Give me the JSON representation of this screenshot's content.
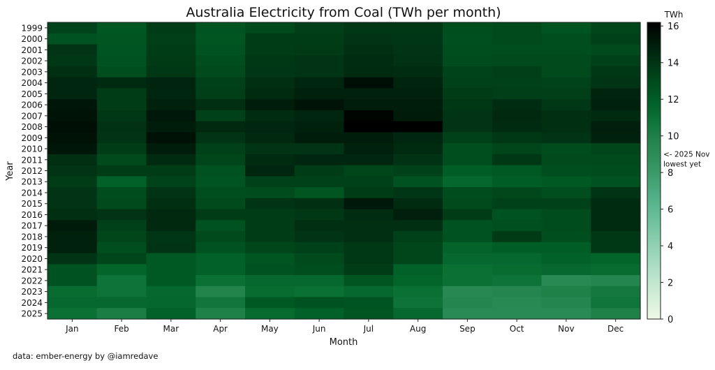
{
  "chart_data": {
    "type": "heatmap",
    "title": "Australia Electricity from Coal (TWh per month)",
    "xlabel": "Month",
    "ylabel": "Year",
    "colorbar_label": "TWh",
    "colorbar_ticks": [
      "0",
      "2",
      "4",
      "6",
      "8",
      "10",
      "12",
      "14",
      "16"
    ],
    "colorbar_range": [
      0,
      16.2
    ],
    "annotation": [
      "<- 2025 Nov",
      "lowest yet"
    ],
    "annotation_value": 9.2,
    "months": [
      "Jan",
      "Feb",
      "Mar",
      "Apr",
      "May",
      "Jun",
      "Jul",
      "Aug",
      "Sep",
      "Oct",
      "Nov",
      "Dec"
    ],
    "years": [
      "1999",
      "2000",
      "2001",
      "2002",
      "2003",
      "2004",
      "2005",
      "2006",
      "2007",
      "2008",
      "2009",
      "2010",
      "2011",
      "2012",
      "2013",
      "2014",
      "2015",
      "2016",
      "2017",
      "2018",
      "2019",
      "2020",
      "2021",
      "2022",
      "2023",
      "2024",
      "2025"
    ],
    "values": [
      [
        13.3,
        12.3,
        13.6,
        12.5,
        13.0,
        13.5,
        13.8,
        13.8,
        12.8,
        13.0,
        12.5,
        13.2
      ],
      [
        12.6,
        12.4,
        13.5,
        12.4,
        13.6,
        13.6,
        14.0,
        13.9,
        12.7,
        13.0,
        12.8,
        13.4
      ],
      [
        14.0,
        12.5,
        13.6,
        12.6,
        13.6,
        13.7,
        14.2,
        14.0,
        12.8,
        12.8,
        12.8,
        13.0
      ],
      [
        13.8,
        12.6,
        13.7,
        12.8,
        13.8,
        14.0,
        14.3,
        14.1,
        12.9,
        13.0,
        13.0,
        13.4
      ],
      [
        14.2,
        12.8,
        13.8,
        13.0,
        13.9,
        14.0,
        14.4,
        14.3,
        13.3,
        13.5,
        13.0,
        13.8
      ],
      [
        14.6,
        14.4,
        14.7,
        13.4,
        14.2,
        14.6,
        15.6,
        14.7,
        13.4,
        13.4,
        13.3,
        14.0
      ],
      [
        14.6,
        13.6,
        14.6,
        13.5,
        14.4,
        14.8,
        14.8,
        14.8,
        13.6,
        13.5,
        13.5,
        14.7
      ],
      [
        15.3,
        13.6,
        14.8,
        14.2,
        15.0,
        15.4,
        15.0,
        15.0,
        13.8,
        14.3,
        13.8,
        14.8
      ],
      [
        15.4,
        13.8,
        15.2,
        13.4,
        14.3,
        14.6,
        16.0,
        15.1,
        14.0,
        14.5,
        14.2,
        14.4
      ],
      [
        15.6,
        14.1,
        15.0,
        14.5,
        14.6,
        14.8,
        16.2,
        16.2,
        14.0,
        14.4,
        14.2,
        14.9
      ],
      [
        15.5,
        14.0,
        15.5,
        14.0,
        14.5,
        15.0,
        15.0,
        14.6,
        13.4,
        13.8,
        14.0,
        14.8
      ],
      [
        15.3,
        13.6,
        15.0,
        13.4,
        14.0,
        14.0,
        14.8,
        14.4,
        12.8,
        13.2,
        12.9,
        13.2
      ],
      [
        14.2,
        13.0,
        14.4,
        13.2,
        14.4,
        14.6,
        14.6,
        14.1,
        12.8,
        13.8,
        13.0,
        13.0
      ],
      [
        14.0,
        13.6,
        13.6,
        12.6,
        14.6,
        13.6,
        13.2,
        13.4,
        12.0,
        12.2,
        12.8,
        12.9
      ],
      [
        13.6,
        11.8,
        13.3,
        12.5,
        13.4,
        13.4,
        13.4,
        12.6,
        11.5,
        12.0,
        12.2,
        12.6
      ],
      [
        14.0,
        12.9,
        14.0,
        12.8,
        12.9,
        12.4,
        13.6,
        13.9,
        12.9,
        13.1,
        12.8,
        14.0
      ],
      [
        14.0,
        13.0,
        14.2,
        13.0,
        14.0,
        14.2,
        15.2,
        14.4,
        13.0,
        13.4,
        13.4,
        14.4
      ],
      [
        14.2,
        14.0,
        14.5,
        13.6,
        13.6,
        13.8,
        14.3,
        14.9,
        13.6,
        12.6,
        12.9,
        14.4
      ],
      [
        15.1,
        13.4,
        14.5,
        12.6,
        13.6,
        14.2,
        14.2,
        14.2,
        12.6,
        12.7,
        12.9,
        14.4
      ],
      [
        14.8,
        13.2,
        13.9,
        13.0,
        13.6,
        14.0,
        14.2,
        13.4,
        12.6,
        13.7,
        12.8,
        13.8
      ],
      [
        14.8,
        12.8,
        14.0,
        12.6,
        13.2,
        13.4,
        13.8,
        13.2,
        11.7,
        12.0,
        12.0,
        13.8
      ],
      [
        14.0,
        13.2,
        12.2,
        11.8,
        12.4,
        13.0,
        13.8,
        13.2,
        11.4,
        11.4,
        11.8,
        11.6
      ],
      [
        12.6,
        11.6,
        12.2,
        11.8,
        12.6,
        12.8,
        13.6,
        11.8,
        11.0,
        11.2,
        11.4,
        11.2
      ],
      [
        12.6,
        10.8,
        12.2,
        11.0,
        11.4,
        11.4,
        12.4,
        11.6,
        11.0,
        10.8,
        9.3,
        9.6
      ],
      [
        11.2,
        10.8,
        11.4,
        9.8,
        11.2,
        11.0,
        11.4,
        11.0,
        9.4,
        9.6,
        10.0,
        10.5
      ],
      [
        11.4,
        11.4,
        11.5,
        10.6,
        12.2,
        12.6,
        12.5,
        10.8,
        9.6,
        9.3,
        9.6,
        10.7
      ],
      [
        11.0,
        10.2,
        11.8,
        10.0,
        11.3,
        11.8,
        12.4,
        11.4,
        9.2,
        9.2,
        9.2,
        10.0
      ]
    ],
    "colormap_stops": [
      [
        0,
        "#eef8e6"
      ],
      [
        2,
        "#c2e7cf"
      ],
      [
        4,
        "#90d1b2"
      ],
      [
        6,
        "#5fb994"
      ],
      [
        8,
        "#3a9a68"
      ],
      [
        10,
        "#1f8048"
      ],
      [
        11,
        "#0a7034"
      ],
      [
        12,
        "#005d25"
      ],
      [
        13,
        "#004a1c"
      ],
      [
        14,
        "#003414"
      ],
      [
        15,
        "#001d0b"
      ],
      [
        16.2,
        "#000000"
      ]
    ]
  },
  "footer": "data: ember-energy by @iamredave"
}
